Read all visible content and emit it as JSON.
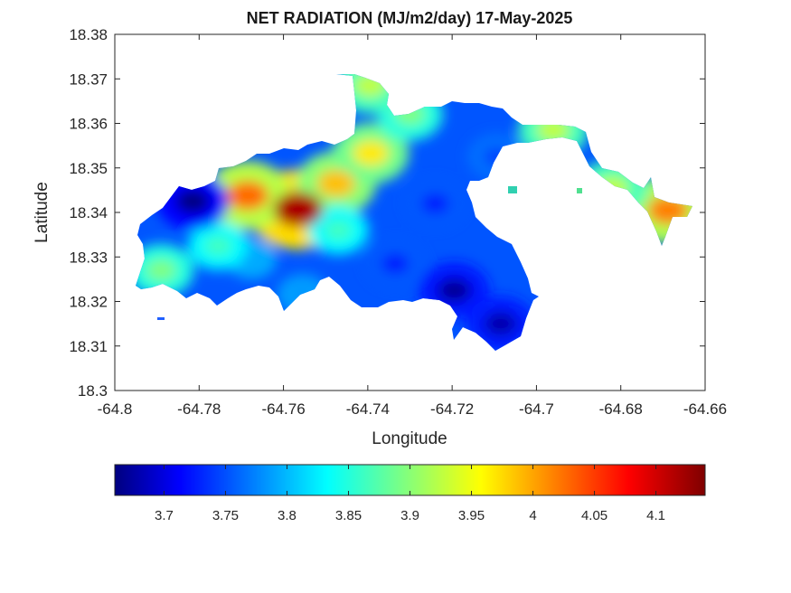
{
  "chart_data": {
    "type": "heatmap",
    "title": "NET RADIATION (MJ/m2/day) 17-May-2025",
    "xlabel": "Longitude",
    "ylabel": "Latitude",
    "xlim": [
      -64.8,
      -64.66
    ],
    "ylim": [
      18.3,
      18.38
    ],
    "x_ticks": [
      "-64.8",
      "-64.78",
      "-64.76",
      "-64.74",
      "-64.72",
      "-64.7",
      "-64.68",
      "-64.66"
    ],
    "y_ticks": [
      "18.3",
      "18.31",
      "18.32",
      "18.33",
      "18.34",
      "18.35",
      "18.36",
      "18.37",
      "18.38"
    ],
    "colormap": "jet",
    "color_range": [
      3.66,
      4.14
    ],
    "colorbar_ticks": [
      "3.7",
      "3.75",
      "3.8",
      "3.85",
      "3.9",
      "3.95",
      "4",
      "4.05",
      "4.1"
    ],
    "colorbar_location": "southoutside",
    "grid": false,
    "background_color": "#ffffff",
    "hotspots": [
      {
        "lon": -64.7565,
        "lat": 18.3407,
        "value": 4.12
      },
      {
        "lon": -64.7685,
        "lat": 18.3438,
        "value": 4.03
      },
      {
        "lon": -64.7475,
        "lat": 18.3465,
        "value": 3.99
      },
      {
        "lon": -64.7393,
        "lat": 18.3533,
        "value": 3.97
      },
      {
        "lon": -64.6688,
        "lat": 18.3405,
        "value": 4.02
      },
      {
        "lon": -64.7675,
        "lat": 18.3295,
        "value": 3.8
      },
      {
        "lon": -64.7755,
        "lat": 18.3325,
        "value": 3.87
      },
      {
        "lon": -64.7815,
        "lat": 18.3425,
        "value": 3.66
      },
      {
        "lon": -64.724,
        "lat": 18.342,
        "value": 3.73
      },
      {
        "lon": -64.7095,
        "lat": 18.3525,
        "value": 3.75
      },
      {
        "lon": -64.7195,
        "lat": 18.3225,
        "value": 3.67
      },
      {
        "lon": -64.7085,
        "lat": 18.315,
        "value": 3.68
      },
      {
        "lon": -64.7555,
        "lat": 18.3215,
        "value": 3.79
      },
      {
        "lon": -64.7335,
        "lat": 18.3285,
        "value": 3.73
      },
      {
        "lon": -64.73,
        "lat": 18.362,
        "value": 3.9
      },
      {
        "lon": -64.7395,
        "lat": 18.3685,
        "value": 3.93
      },
      {
        "lon": -64.789,
        "lat": 18.327,
        "value": 3.9
      },
      {
        "lon": -64.696,
        "lat": 18.3585,
        "value": 3.93
      },
      {
        "lon": -64.682,
        "lat": 18.3455,
        "value": 3.93
      },
      {
        "lon": -64.747,
        "lat": 18.336,
        "value": 3.87
      }
    ]
  }
}
